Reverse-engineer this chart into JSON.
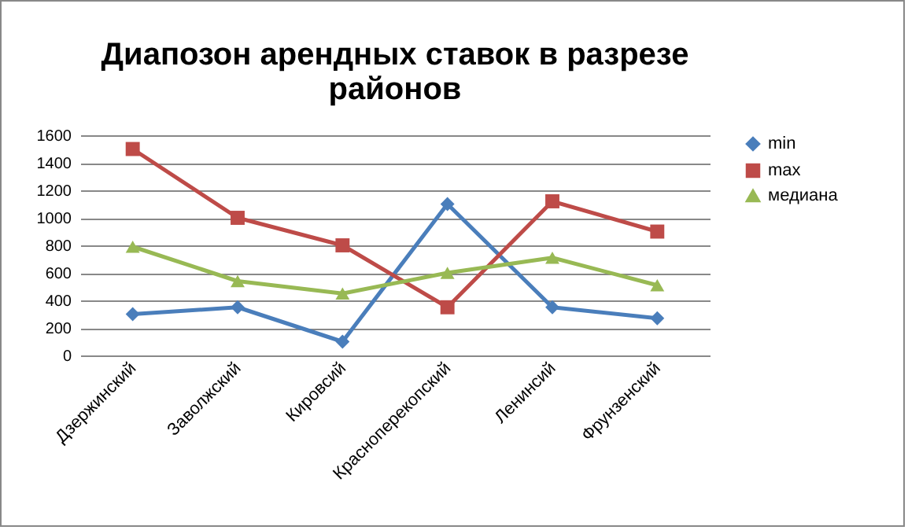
{
  "chart_data": {
    "type": "line",
    "title": "Диапозон арендных ставок в разрезе районов",
    "categories": [
      "Дзержинский",
      "Заволжский",
      "Кировсий",
      "Красноперекопский",
      "Ленинсий",
      "Фрунзенский"
    ],
    "series": [
      {
        "name": "min",
        "color": "#4a7ebb",
        "marker": "diamond",
        "values": [
          300,
          350,
          100,
          1100,
          350,
          270
        ]
      },
      {
        "name": "max",
        "color": "#be4b48",
        "marker": "square",
        "values": [
          1500,
          1000,
          800,
          350,
          1120,
          900
        ]
      },
      {
        "name": "медиана",
        "color": "#98b954",
        "marker": "triangle",
        "values": [
          790,
          540,
          450,
          600,
          710,
          510
        ]
      }
    ],
    "ylim": [
      0,
      1600
    ],
    "yticks": [
      0,
      200,
      400,
      600,
      800,
      1000,
      1200,
      1400,
      1600
    ],
    "grid": "y",
    "legend": "right"
  }
}
